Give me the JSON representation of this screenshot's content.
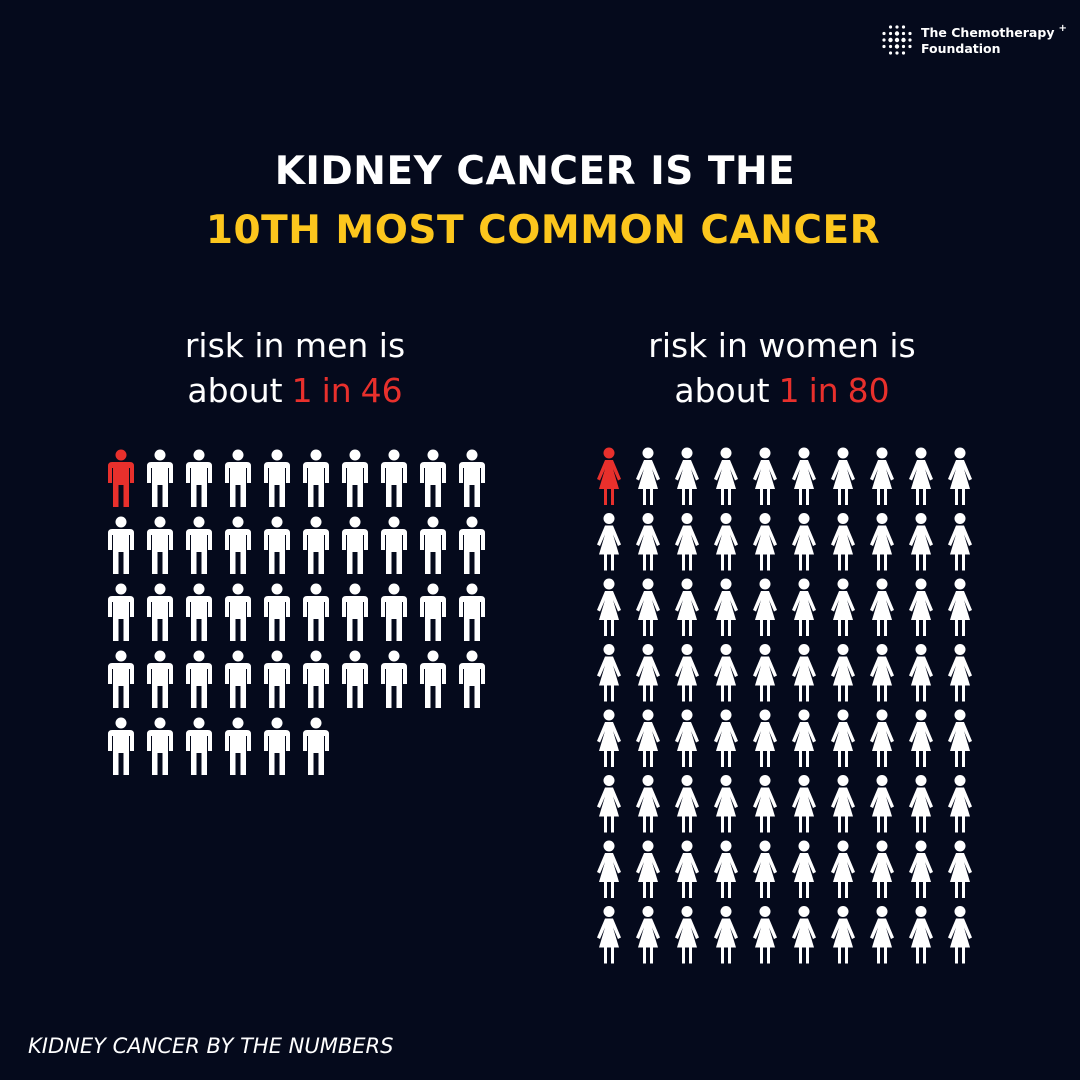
{
  "logo": {
    "line1": "The Chemotherapy",
    "mark": "+",
    "line2": "Foundation"
  },
  "headline": {
    "line1": "KIDNEY CANCER IS THE",
    "line2": "10TH MOST COMMON CANCER"
  },
  "panels": [
    {
      "label": "risk in men is",
      "prefix": "about",
      "numerator": 1,
      "joiner": "in",
      "denominator": 46,
      "figure": "man"
    },
    {
      "label": "risk in women is",
      "prefix": "about",
      "numerator": 1,
      "joiner": "in",
      "denominator": 80,
      "figure": "woman"
    }
  ],
  "footer": "KIDNEY CANCER BY THE NUMBERS"
}
